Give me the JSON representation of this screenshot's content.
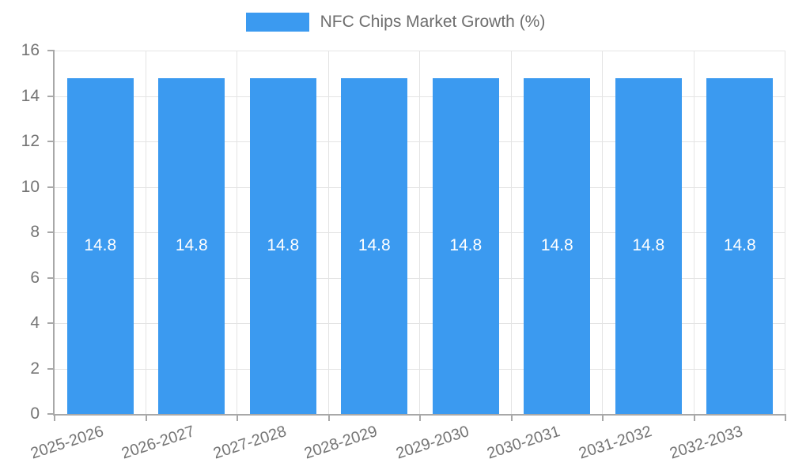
{
  "chart_data": {
    "type": "bar",
    "title": "NFC Chips Market Growth (%)",
    "categories": [
      "2025-2026",
      "2026-2027",
      "2027-2028",
      "2028-2029",
      "2029-2030",
      "2030-2031",
      "2031-2032",
      "2032-2033"
    ],
    "series": [
      {
        "name": "NFC Chips Market Growth (%)",
        "values": [
          14.8,
          14.8,
          14.8,
          14.8,
          14.8,
          14.8,
          14.8,
          14.8
        ]
      }
    ],
    "value_label_format": "one_decimal",
    "xlabel": "",
    "ylabel": "",
    "ylim": [
      0,
      16
    ],
    "ytick_step": 2,
    "grid": true,
    "legend_position": "top",
    "x_label_rotation_deg": -18,
    "colors": {
      "bar": "#3b9af0",
      "value_label": "#ffffff",
      "grid": "#e4e4e4",
      "axis": "#a8a8a8",
      "tick_text": "#757575",
      "legend_text": "#6e6e6e",
      "background": "#ffffff"
    }
  }
}
